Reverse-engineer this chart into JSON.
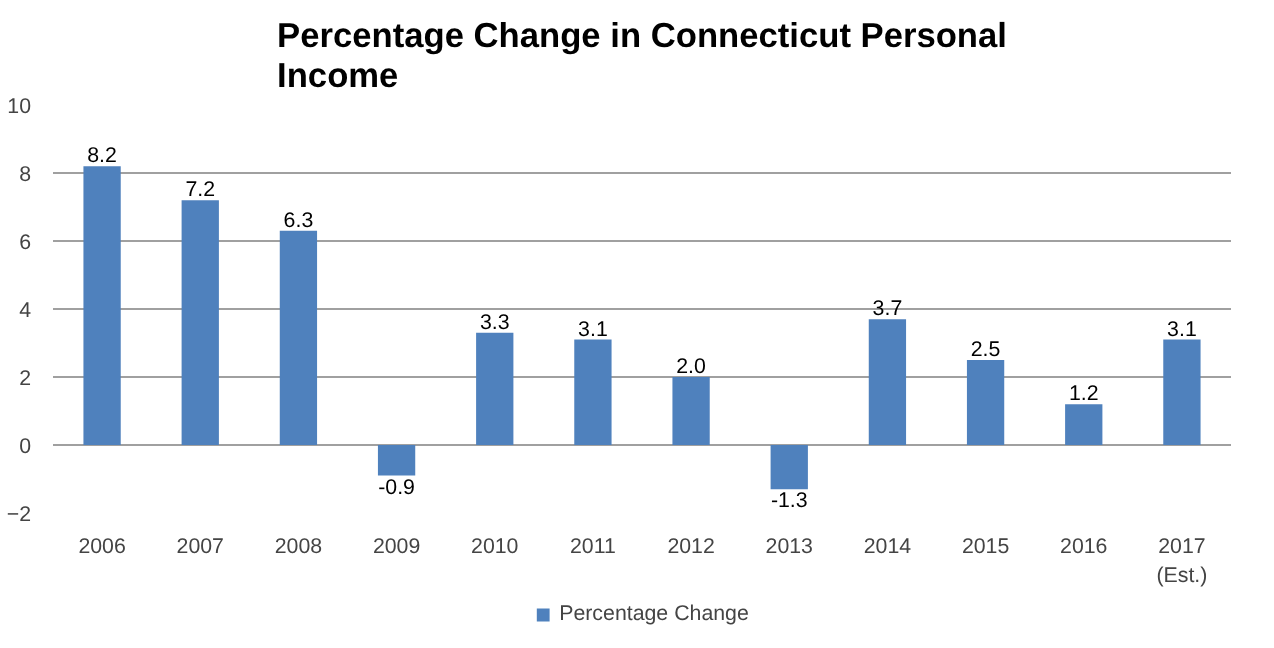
{
  "chart_data": {
    "type": "bar",
    "title": "Percentage Change in Connecticut Personal Income",
    "categories": [
      "2006",
      "2007",
      "2008",
      "2009",
      "2010",
      "2011",
      "2012",
      "2013",
      "2014",
      "2015",
      "2016",
      "2017\n(Est.)"
    ],
    "series": [
      {
        "name": "Percentage Change",
        "color": "#4f81bd",
        "values": [
          8.2,
          7.2,
          6.3,
          -0.9,
          3.3,
          3.1,
          2.0,
          -1.3,
          3.7,
          2.5,
          1.2,
          3.1
        ],
        "value_labels": [
          "8.2",
          "7.2",
          "6.3",
          "-0.9",
          "3.3",
          "3.1",
          "2.0",
          "-1.3",
          "3.7",
          "2.5",
          "1.2",
          "3.1"
        ]
      }
    ],
    "ylim": [
      -2,
      10
    ],
    "yticks": [
      -2,
      0,
      2,
      4,
      6,
      8,
      10
    ],
    "grid": "y",
    "legend": "bottom"
  }
}
